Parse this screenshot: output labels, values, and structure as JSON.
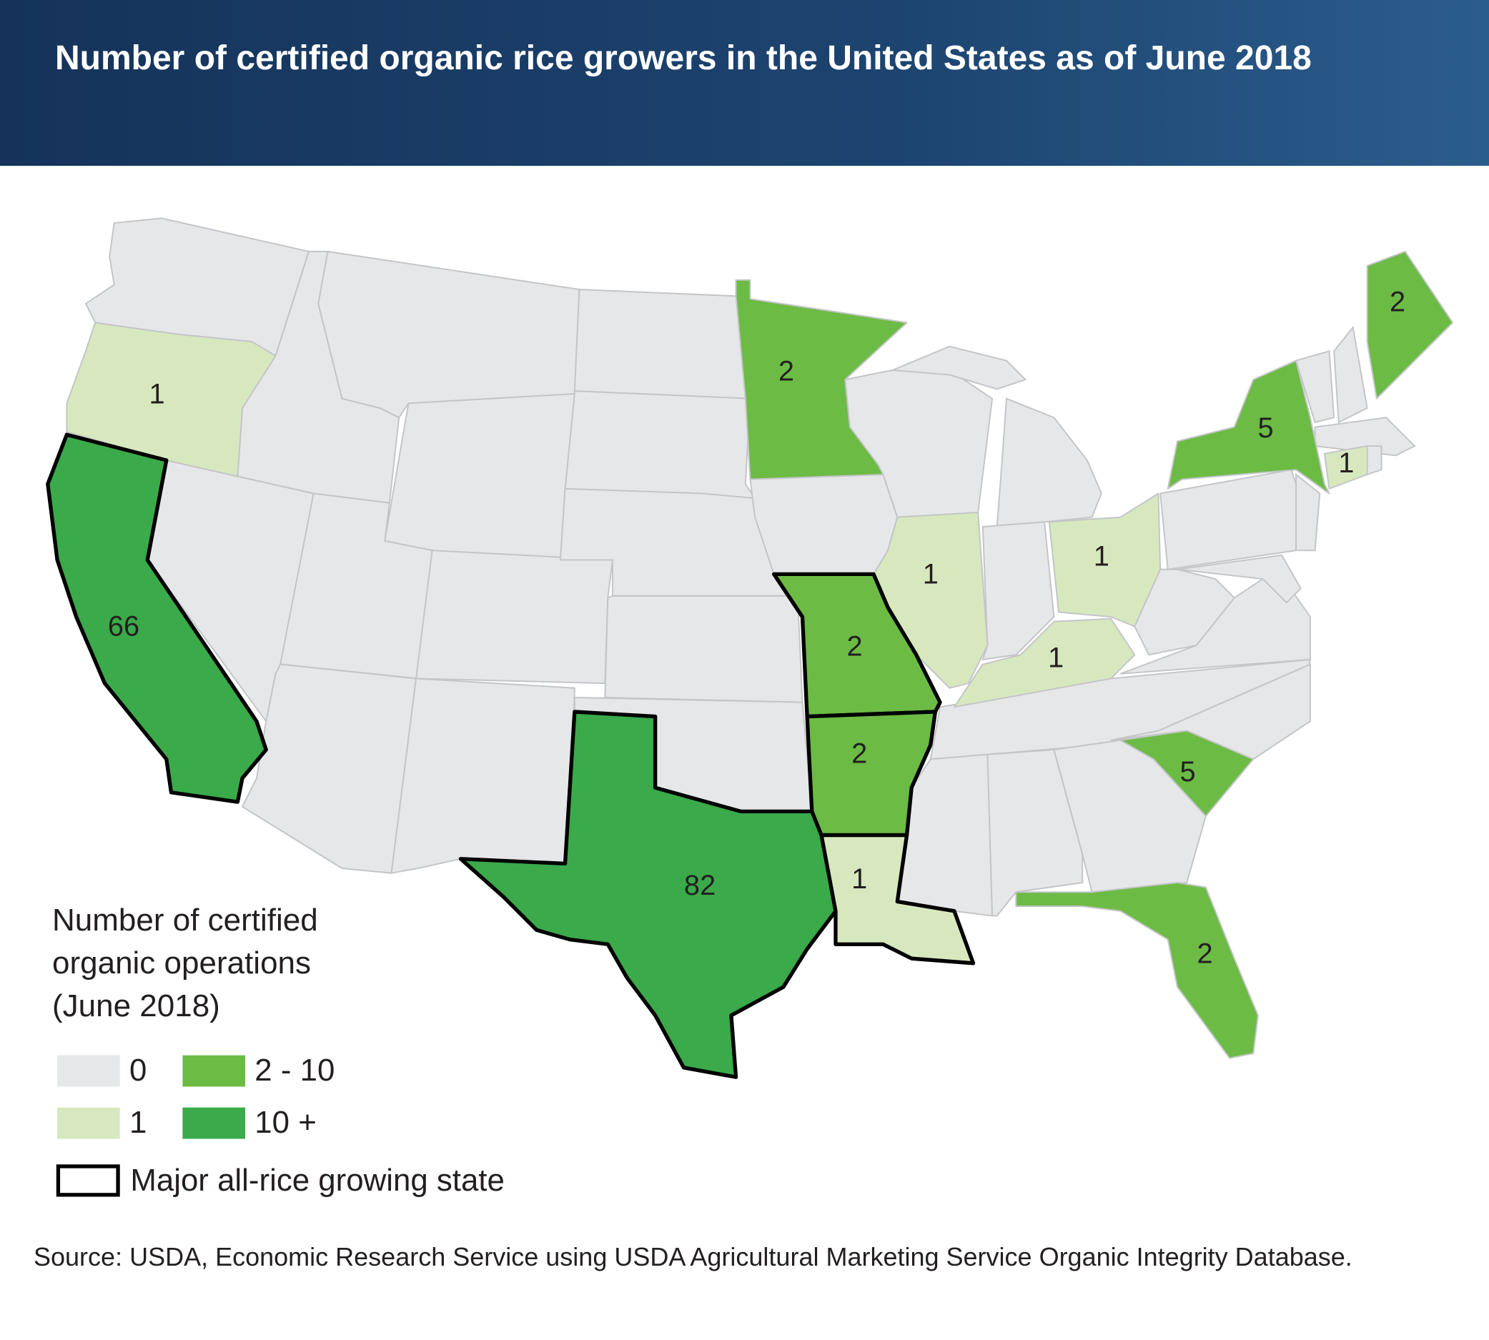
{
  "header": {
    "title": "Number of certified organic rice growers in the United States as of June 2018"
  },
  "map": {
    "regions": [
      {
        "value": 66,
        "color": "#3aaa4a",
        "major": true
      },
      {
        "value": 82,
        "color": "#3aaa4a",
        "major": true
      },
      {
        "value": 1,
        "color": "#d7e8bf",
        "major": false
      },
      {
        "value": 2,
        "color": "#6cbb45",
        "major": false
      },
      {
        "value": 2,
        "color": "#6cbb45",
        "major": true
      },
      {
        "value": 2,
        "color": "#6cbb45",
        "major": true
      },
      {
        "value": 1,
        "color": "#d7e8bf",
        "major": true
      },
      {
        "value": 1,
        "color": "#d7e8bf",
        "major": false
      },
      {
        "value": 1,
        "color": "#d7e8bf",
        "major": false
      },
      {
        "value": 1,
        "color": "#d7e8bf",
        "major": false
      },
      {
        "value": 5,
        "color": "#6cbb45",
        "major": false
      },
      {
        "value": 2,
        "color": "#6cbb45",
        "major": false
      },
      {
        "value": 1,
        "color": "#d7e8bf",
        "major": false
      },
      {
        "value": 5,
        "color": "#6cbb45",
        "major": false
      },
      {
        "value": 2,
        "color": "#6cbb45",
        "major": false
      }
    ],
    "legend": {
      "title": "Number of certified organic operations (June 2018)",
      "items": [
        {
          "label": "0",
          "color": "#e6e7e9"
        },
        {
          "label": "2 - 10",
          "color": "#6cbb45"
        },
        {
          "label": "1",
          "color": "#d7e8bf"
        },
        {
          "label": "10 +",
          "color": "#3aaa4a"
        }
      ],
      "outline_label": "Major all-rice growing state"
    }
  },
  "source": "Source: USDA, Economic Research Service using USDA Agricultural Marketing Service Organic Integrity Database."
}
